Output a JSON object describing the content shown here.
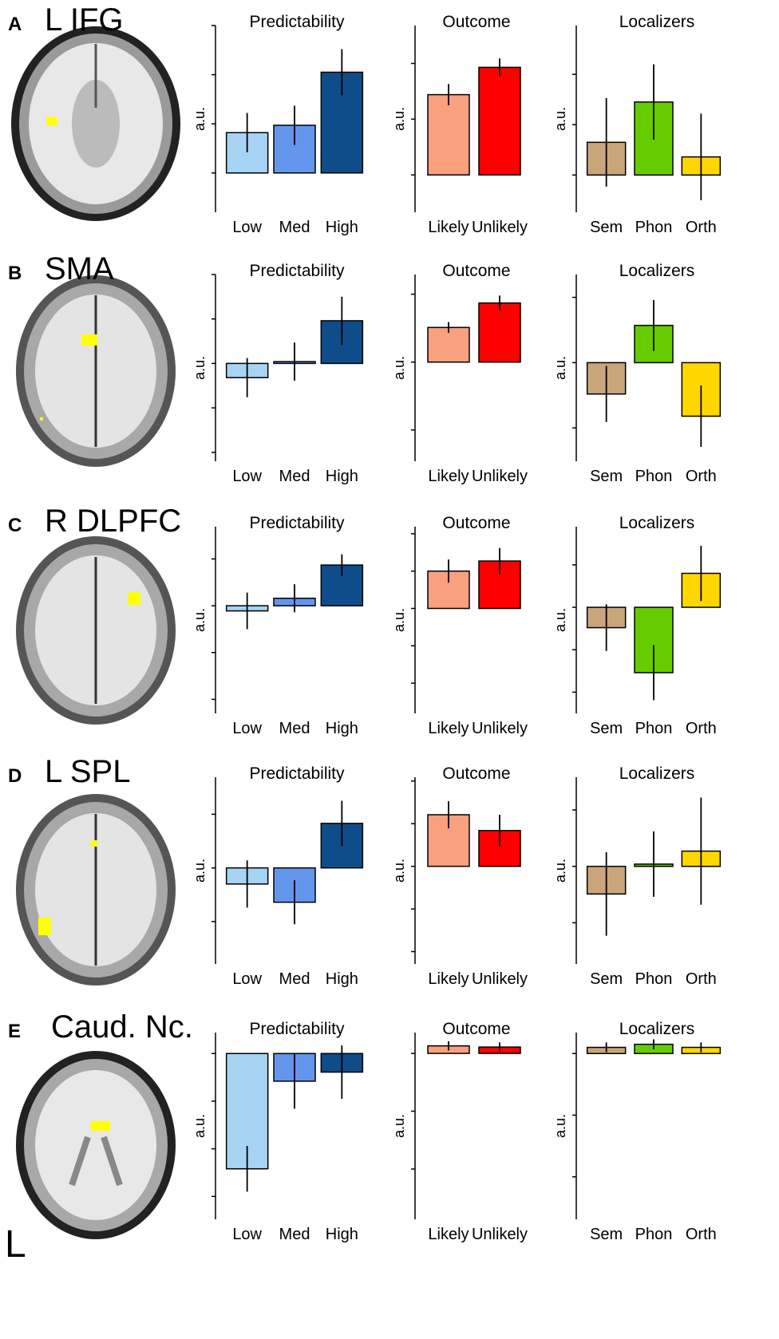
{
  "panels": [
    {
      "letter": "A",
      "region": "L IFG"
    },
    {
      "letter": "B",
      "region": "SMA"
    },
    {
      "letter": "C",
      "region": "R DLPFC"
    },
    {
      "letter": "D",
      "region": "L SPL"
    },
    {
      "letter": "E",
      "region": "Caud. Nc."
    }
  ],
  "orientation_label": "L",
  "chart_data": [
    {
      "type": "bar",
      "title": "Predictability",
      "ylabel": "a.u.",
      "categories": [
        "Low",
        "Med",
        "High"
      ],
      "values": [
        0.82,
        0.97,
        2.05
      ],
      "errors": [
        0.4,
        0.4,
        0.47
      ],
      "colors": [
        "#a6d4f2",
        "#6495ed",
        "#0f4c8a"
      ],
      "ylim": [
        -0.8,
        3.0
      ],
      "yticks": [
        0,
        1,
        2,
        3
      ]
    },
    {
      "type": "bar",
      "title": "Outcome",
      "ylabel": "a.u.",
      "categories": [
        "Likely",
        "Unlikely"
      ],
      "values": [
        1.44,
        1.93
      ],
      "errors": [
        0.19,
        0.16
      ],
      "colors": [
        "#f9a07f",
        "#ff0000"
      ],
      "ylim": [
        -0.67,
        2.68
      ],
      "yticks": [
        0,
        1,
        2
      ]
    },
    {
      "type": "bar",
      "title": "Localizers",
      "ylabel": "a.u.",
      "categories": [
        "Sem",
        "Phon",
        "Orth"
      ],
      "values": [
        0.65,
        1.45,
        0.36
      ],
      "errors": [
        0.88,
        0.75,
        0.86
      ],
      "colors": [
        "#c8a57a",
        "#66cc00",
        "#ffd700"
      ],
      "ylim": [
        -0.74,
        2.97
      ],
      "yticks": [
        0,
        1,
        2
      ]
    },
    {
      "type": "bar",
      "title": "Predictability",
      "ylabel": "a.u.",
      "categories": [
        "Low",
        "Med",
        "High"
      ],
      "values": [
        -0.32,
        0.04,
        0.96
      ],
      "errors": [
        0.44,
        0.43,
        0.54
      ],
      "colors": [
        "#a6d4f2",
        "#6495ed",
        "#0f4c8a"
      ],
      "ylim": [
        -2.2,
        2.0
      ],
      "yticks": [
        -2,
        -1,
        0,
        1,
        2
      ]
    },
    {
      "type": "bar",
      "title": "Outcome",
      "ylabel": "a.u.",
      "categories": [
        "Likely",
        "Unlikely"
      ],
      "values": [
        0.51,
        0.87
      ],
      "errors": [
        0.08,
        0.11
      ],
      "colors": [
        "#f9a07f",
        "#ff0000"
      ],
      "ylim": [
        -1.46,
        1.29
      ],
      "yticks": [
        -1,
        0,
        1
      ]
    },
    {
      "type": "bar",
      "title": "Localizers",
      "ylabel": "a.u.",
      "categories": [
        "Sem",
        "Phon",
        "Orth"
      ],
      "values": [
        -0.48,
        0.57,
        -0.82
      ],
      "errors": [
        0.43,
        0.39,
        0.47
      ],
      "colors": [
        "#c8a57a",
        "#66cc00",
        "#ffd700"
      ],
      "ylim": [
        -1.51,
        1.35
      ],
      "yticks": [
        -1,
        0,
        1
      ]
    },
    {
      "type": "bar",
      "title": "Predictability",
      "ylabel": "a.u.",
      "categories": [
        "Low",
        "Med",
        "High"
      ],
      "values": [
        -0.11,
        0.16,
        0.87
      ],
      "errors": [
        0.39,
        0.3,
        0.23
      ],
      "colors": [
        "#a6d4f2",
        "#6495ed",
        "#0f4c8a"
      ],
      "ylim": [
        -2.3,
        1.69
      ],
      "yticks": [
        -2,
        -1,
        0,
        1
      ]
    },
    {
      "type": "bar",
      "title": "Outcome",
      "ylabel": "a.u.",
      "categories": [
        "Likely",
        "Unlikely"
      ],
      "values": [
        1.0,
        1.27
      ],
      "errors": [
        0.31,
        0.35
      ],
      "colors": [
        "#f9a07f",
        "#ff0000"
      ],
      "ylim": [
        -2.81,
        2.19
      ],
      "yticks": [
        -2,
        -1,
        0,
        1,
        2
      ]
    },
    {
      "type": "bar",
      "title": "Localizers",
      "ylabel": "a.u.",
      "categories": [
        "Sem",
        "Phon",
        "Orth"
      ],
      "values": [
        -0.48,
        -1.54,
        0.8
      ],
      "errors": [
        0.55,
        0.65,
        0.65
      ],
      "colors": [
        "#c8a57a",
        "#66cc00",
        "#ffd700"
      ],
      "ylim": [
        -2.5,
        1.9
      ],
      "yticks": [
        -2,
        -1,
        0,
        1
      ]
    },
    {
      "type": "bar",
      "title": "Predictability",
      "ylabel": "a.u.",
      "categories": [
        "Low",
        "Med",
        "High"
      ],
      "values": [
        -0.3,
        -0.64,
        0.83
      ],
      "errors": [
        0.44,
        0.41,
        0.42
      ],
      "colors": [
        "#a6d4f2",
        "#6495ed",
        "#0f4c8a"
      ],
      "ylim": [
        -1.79,
        1.69
      ],
      "yticks": [
        -1,
        0,
        1
      ]
    },
    {
      "type": "bar",
      "title": "Outcome",
      "ylabel": "a.u.",
      "categories": [
        "Likely",
        "Unlikely"
      ],
      "values": [
        1.21,
        0.84
      ],
      "errors": [
        0.32,
        0.37
      ],
      "colors": [
        "#f9a07f",
        "#ff0000"
      ],
      "ylim": [
        -2.29,
        2.09
      ],
      "yticks": [
        -2,
        -1,
        0,
        1,
        2
      ]
    },
    {
      "type": "bar",
      "title": "Localizers",
      "ylabel": "a.u.",
      "categories": [
        "Sem",
        "Phon",
        "Orth"
      ],
      "values": [
        -0.49,
        0.04,
        0.27
      ],
      "errors": [
        0.74,
        0.58,
        0.95
      ],
      "colors": [
        "#c8a57a",
        "#66cc00",
        "#ffd700"
      ],
      "ylim": [
        -1.73,
        1.58
      ],
      "yticks": [
        -1,
        0,
        1
      ]
    },
    {
      "type": "bar",
      "title": "Predictability",
      "ylabel": "a.u.",
      "categories": [
        "Low",
        "Med",
        "High"
      ],
      "values": [
        -2.42,
        -0.58,
        -0.39
      ],
      "errors": [
        0.48,
        0.58,
        0.56
      ],
      "colors": [
        "#a6d4f2",
        "#6495ed",
        "#0f4c8a"
      ],
      "ylim": [
        -3.48,
        0.44
      ],
      "yticks": [
        -3,
        -2,
        -1,
        0
      ]
    },
    {
      "type": "bar",
      "title": "Outcome",
      "ylabel": "a.u.",
      "categories": [
        "Likely",
        "Unlikely"
      ],
      "values": [
        0.13,
        0.11
      ],
      "errors": [
        0.08,
        0.08
      ],
      "colors": [
        "#f9a07f",
        "#ff0000"
      ],
      "ylim": [
        -2.87,
        0.36
      ],
      "yticks": [
        -2,
        -1,
        0
      ]
    },
    {
      "type": "bar",
      "title": "Localizers",
      "ylabel": "a.u.",
      "categories": [
        "Sem",
        "Phon",
        "Orth"
      ],
      "values": [
        0.1,
        0.15,
        0.1
      ],
      "errors": [
        0.08,
        0.08,
        0.08
      ],
      "colors": [
        "#c8a57a",
        "#66cc00",
        "#ffd700"
      ],
      "ylim": [
        -2.69,
        0.34
      ],
      "yticks": [
        -2,
        -1,
        0
      ]
    }
  ]
}
